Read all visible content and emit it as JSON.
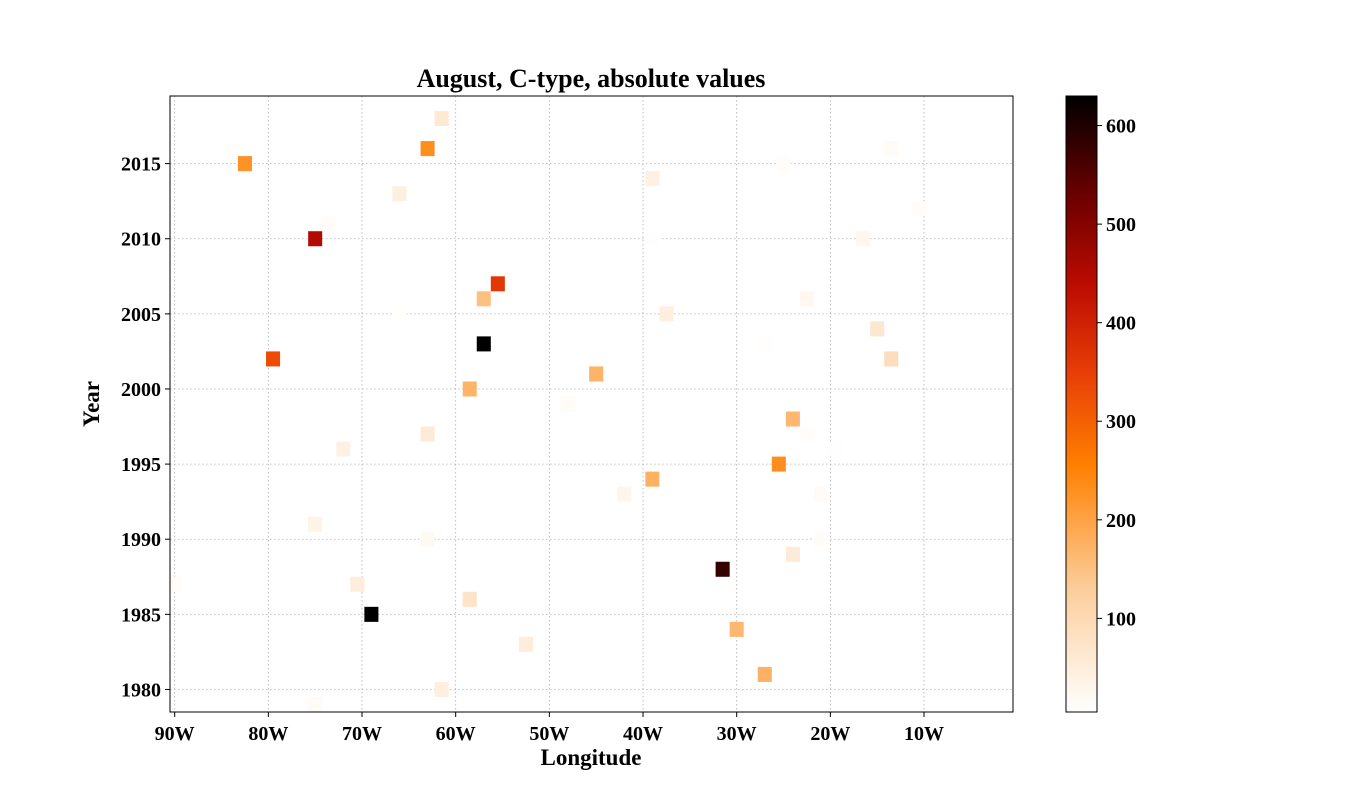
{
  "chart_data": {
    "type": "heatmap",
    "title": "August, C-type, absolute values",
    "xlabel": "Longitude",
    "ylabel": "Year",
    "xlim": [
      -90.5,
      -0.5
    ],
    "ylim": [
      1978.5,
      2019.5
    ],
    "x_ticks": [
      {
        "value": -90,
        "label": "90W"
      },
      {
        "value": -80,
        "label": "80W"
      },
      {
        "value": -70,
        "label": "70W"
      },
      {
        "value": -60,
        "label": "60W"
      },
      {
        "value": -50,
        "label": "50W"
      },
      {
        "value": -40,
        "label": "40W"
      },
      {
        "value": -30,
        "label": "30W"
      },
      {
        "value": -20,
        "label": "20W"
      },
      {
        "value": -10,
        "label": "10W"
      }
    ],
    "y_ticks": [
      1980,
      1985,
      1990,
      1995,
      2000,
      2005,
      2010,
      2015
    ],
    "grid": true,
    "colormap": "gist_heat_r",
    "colorbar": {
      "min": 5,
      "max": 630,
      "ticks": [
        100,
        200,
        300,
        400,
        500,
        600
      ]
    },
    "points": [
      {
        "lon": -61.5,
        "year": 2018,
        "value": 60
      },
      {
        "lon": -63,
        "year": 2016,
        "value": 230
      },
      {
        "lon": -82.5,
        "year": 2015,
        "value": 225
      },
      {
        "lon": -13.5,
        "year": 2016,
        "value": 15
      },
      {
        "lon": -25,
        "year": 2015,
        "value": 12
      },
      {
        "lon": -39,
        "year": 2014,
        "value": 40
      },
      {
        "lon": -66,
        "year": 2013,
        "value": 45
      },
      {
        "lon": -10.5,
        "year": 2012,
        "value": 12
      },
      {
        "lon": -73.5,
        "year": 2011,
        "value": 12
      },
      {
        "lon": -75,
        "year": 2010,
        "value": 450
      },
      {
        "lon": -39,
        "year": 2010,
        "value": 8
      },
      {
        "lon": -16.5,
        "year": 2010,
        "value": 25
      },
      {
        "lon": -55.5,
        "year": 2007,
        "value": 360
      },
      {
        "lon": -57,
        "year": 2006,
        "value": 150
      },
      {
        "lon": -22.5,
        "year": 2006,
        "value": 22
      },
      {
        "lon": -37.5,
        "year": 2005,
        "value": 45
      },
      {
        "lon": -66,
        "year": 2005,
        "value": 6
      },
      {
        "lon": -15,
        "year": 2004,
        "value": 65
      },
      {
        "lon": -57,
        "year": 2003,
        "value": 630
      },
      {
        "lon": -27,
        "year": 2003,
        "value": 8
      },
      {
        "lon": -79.5,
        "year": 2002,
        "value": 330
      },
      {
        "lon": -13.5,
        "year": 2002,
        "value": 90
      },
      {
        "lon": -45,
        "year": 2001,
        "value": 170
      },
      {
        "lon": -58.5,
        "year": 2000,
        "value": 170
      },
      {
        "lon": -48,
        "year": 2000,
        "value": 15,
        "year_override": 1999
      },
      {
        "lon": -24,
        "year": 1998,
        "value": 165
      },
      {
        "lon": -63,
        "year": 1997,
        "value": 55
      },
      {
        "lon": -22.5,
        "year": 1997,
        "value": 12
      },
      {
        "lon": -72,
        "year": 1996,
        "value": 40
      },
      {
        "lon": -19.5,
        "year": 1996,
        "value": 8
      },
      {
        "lon": -25.5,
        "year": 1995,
        "value": 230
      },
      {
        "lon": -39,
        "year": 1994,
        "value": 175
      },
      {
        "lon": -42,
        "year": 1993,
        "value": 30
      },
      {
        "lon": -21,
        "year": 1993,
        "value": 15
      },
      {
        "lon": -75,
        "year": 1991,
        "value": 35
      },
      {
        "lon": -63,
        "year": 1990,
        "value": 20
      },
      {
        "lon": -21,
        "year": 1990,
        "value": 12
      },
      {
        "lon": -24,
        "year": 1989,
        "value": 55
      },
      {
        "lon": -31.5,
        "year": 1988,
        "value": 580
      },
      {
        "lon": -90,
        "year": 1987,
        "value": 12
      },
      {
        "lon": -70.5,
        "year": 1987,
        "value": 50
      },
      {
        "lon": -58.5,
        "year": 1986,
        "value": 75
      },
      {
        "lon": -69,
        "year": 1985,
        "value": 630
      },
      {
        "lon": -30,
        "year": 1984,
        "value": 165
      },
      {
        "lon": -52.5,
        "year": 1983,
        "value": 50
      },
      {
        "lon": -27,
        "year": 1981,
        "value": 175
      },
      {
        "lon": -61.5,
        "year": 1980,
        "value": 45
      },
      {
        "lon": -75,
        "year": 1979,
        "value": 15
      }
    ]
  }
}
